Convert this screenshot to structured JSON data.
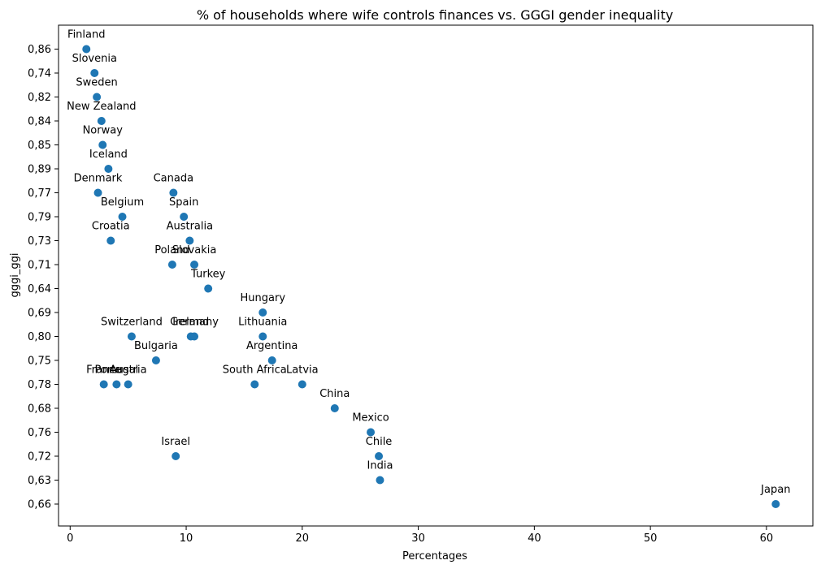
{
  "chart_data": {
    "type": "scatter",
    "title": "% of households where wife controls finances vs. GGGI gender inequality",
    "xlabel": "Percentages",
    "ylabel": "gggi_ggi",
    "xlim": [
      -1.0,
      64.0
    ],
    "x_ticks": [
      0,
      10,
      20,
      30,
      40,
      50,
      60
    ],
    "y_categories": [
      "0,86",
      "0,74",
      "0,82",
      "0,84",
      "0,85",
      "0,89",
      "0,77",
      "0,79",
      "0,73",
      "0,71",
      "0,64",
      "0,69",
      "0,80",
      "0,75",
      "0,78",
      "0,68",
      "0,76",
      "0,72",
      "0,63",
      "0,66"
    ],
    "marker_color": "#1f77b4",
    "points": [
      {
        "label": "Finland",
        "x": 1.4,
        "y": "0,86"
      },
      {
        "label": "Slovenia",
        "x": 2.1,
        "y": "0,74"
      },
      {
        "label": "Sweden",
        "x": 2.3,
        "y": "0,82"
      },
      {
        "label": "New Zealand",
        "x": 2.7,
        "y": "0,84"
      },
      {
        "label": "Norway",
        "x": 2.8,
        "y": "0,85"
      },
      {
        "label": "Iceland",
        "x": 3.3,
        "y": "0,89"
      },
      {
        "label": "Denmark",
        "x": 2.4,
        "y": "0,77"
      },
      {
        "label": "Canada",
        "x": 8.9,
        "y": "0,77"
      },
      {
        "label": "Belgium",
        "x": 4.5,
        "y": "0,79"
      },
      {
        "label": "Spain",
        "x": 9.8,
        "y": "0,79"
      },
      {
        "label": "Croatia",
        "x": 3.5,
        "y": "0,73"
      },
      {
        "label": "Australia",
        "x": 10.3,
        "y": "0,73"
      },
      {
        "label": "Poland",
        "x": 8.8,
        "y": "0,71"
      },
      {
        "label": "Slovakia",
        "x": 10.7,
        "y": "0,71"
      },
      {
        "label": "Turkey",
        "x": 11.9,
        "y": "0,64"
      },
      {
        "label": "Hungary",
        "x": 16.6,
        "y": "0,69"
      },
      {
        "label": "Switzerland",
        "x": 5.3,
        "y": "0,80"
      },
      {
        "label": "Ireland",
        "x": 10.4,
        "y": "0,80"
      },
      {
        "label": "Germany",
        "x": 10.7,
        "y": "0,80"
      },
      {
        "label": "Lithuania",
        "x": 16.6,
        "y": "0,80"
      },
      {
        "label": "Bulgaria",
        "x": 7.4,
        "y": "0,75"
      },
      {
        "label": "Argentina",
        "x": 17.4,
        "y": "0,75"
      },
      {
        "label": "France",
        "x": 2.9,
        "y": "0,78"
      },
      {
        "label": "Portugal",
        "x": 4.0,
        "y": "0,78"
      },
      {
        "label": "Austria",
        "x": 5.0,
        "y": "0,78"
      },
      {
        "label": "South Africa",
        "x": 15.9,
        "y": "0,78"
      },
      {
        "label": "Latvia",
        "x": 20.0,
        "y": "0,78"
      },
      {
        "label": "China",
        "x": 22.8,
        "y": "0,68"
      },
      {
        "label": "Mexico",
        "x": 25.9,
        "y": "0,76"
      },
      {
        "label": "Israel",
        "x": 9.1,
        "y": "0,72"
      },
      {
        "label": "Chile",
        "x": 26.6,
        "y": "0,72"
      },
      {
        "label": "India",
        "x": 26.7,
        "y": "0,63"
      },
      {
        "label": "Japan",
        "x": 60.8,
        "y": "0,66"
      }
    ]
  }
}
